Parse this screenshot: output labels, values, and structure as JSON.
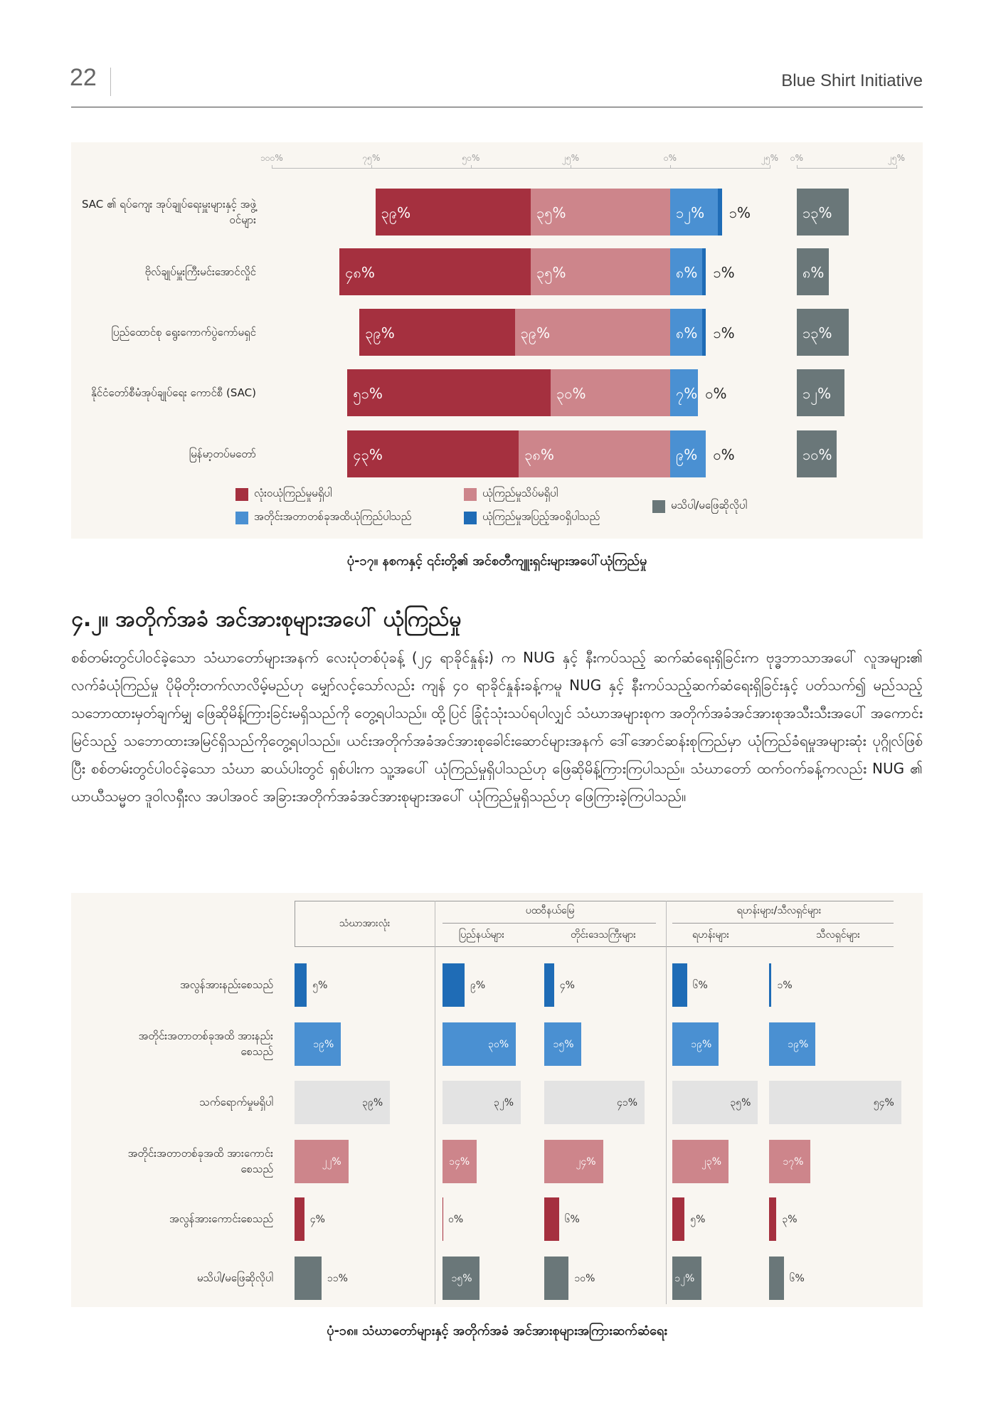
{
  "header": {
    "page_number": "22",
    "publisher": "Blue Shirt Initiative"
  },
  "chart_data": [
    {
      "type": "bar",
      "categories": [
        "SAC ၏ ရပ်ကျေး အုပ်ချုပ်ရေးမှူးများနှင့် အဖွဲ့ဝင်များ",
        "ဗိုလ်ချုပ်မှူးကြီးမင်းအောင်လှိုင်",
        "ပြည်ထောင်စု ရွေးကောက်ပွဲကော်မရှင်",
        "နိုင်ငံတော်စီမံအုပ်ချုပ်ရေး ကောင်စီ (SAC)",
        "မြန်မာ့တပ်မတော်"
      ],
      "xlim": [
        -100,
        25
      ],
      "xticks": [
        {
          "value": -100,
          "label": "၁၀၀%"
        },
        {
          "value": -75,
          "label": "၇၅%"
        },
        {
          "value": -50,
          "label": "၅၀%"
        },
        {
          "value": -25,
          "label": "၂၅%"
        },
        {
          "value": 0,
          "label": "၀%"
        },
        {
          "value": 25,
          "label": "၂၅%"
        }
      ],
      "x2lim": [
        0,
        25
      ],
      "x2ticks": [
        {
          "value": 0,
          "label": "၀%"
        },
        {
          "value": 25,
          "label": "၂၅%"
        }
      ],
      "series": [
        {
          "name": "လုံးဝယုံကြည်မှုမရှိပါ",
          "color": "#a5303f",
          "side": "left",
          "values": [
            39,
            48,
            39,
            51,
            43
          ],
          "value_labels": [
            "၃၉%",
            "၄၈%",
            "၃၉%",
            "၅၁%",
            "၄၃%"
          ]
        },
        {
          "name": "ယုံကြည်မှုသိပ်မရှိပါ",
          "color": "#cd858b",
          "side": "left",
          "values": [
            35,
            35,
            39,
            30,
            38
          ],
          "value_labels": [
            "၃၅%",
            "၃၅%",
            "၃၉%",
            "၃၀%",
            "၃၈%"
          ]
        },
        {
          "name": "အတိုင်းအတာတစ်ခုအထိယုံကြည်ပါသည်",
          "color": "#4a90d2",
          "side": "right",
          "values": [
            12,
            8,
            8,
            7,
            9
          ],
          "value_labels": [
            "၁၂%",
            "၈%",
            "၈%",
            "၇%",
            "၉%"
          ]
        },
        {
          "name": "ယုံကြည်မှုအပြည့်အဝရှိပါသည်",
          "color": "#1f6cb6",
          "side": "right",
          "values": [
            1,
            1,
            1,
            0,
            0
          ],
          "value_labels": [
            "၁%",
            "၁%",
            "၁%",
            "၀%",
            "၀%"
          ]
        },
        {
          "name": "မသိပါ/မဖြေဆိုလိုပါ",
          "color": "#6a7779",
          "axis": "x2",
          "values": [
            13,
            8,
            13,
            12,
            10
          ],
          "value_labels": [
            "၁၃%",
            "၈%",
            "၁၃%",
            "၁၂%",
            "၁၀%"
          ]
        }
      ],
      "caption": "ပုံ-၁၇။ နစကနှင့် ၎င်းတို့၏ အင်စတီကျူးရှင်းများအပေါ်ယုံကြည်မှု"
    },
    {
      "type": "bar",
      "categories": [
        "အလွန်အားနည်းစေသည်",
        "အတိုင်းအတာတစ်ခုအထိ အားနည်းစေသည်",
        "သက်ရောက်မှုမရှိပါ",
        "အတိုင်းအတာတစ်ခုအထိ အားကောင်းစေသည်",
        "အလွန်အားကောင်းစေသည်",
        "မသိပါ/မဖြေဆိုလိုပါ"
      ],
      "colors": [
        "#1f6cb6",
        "#4a90d2",
        "#e3e3e3",
        "#cd858b",
        "#a5303f",
        "#6a7779"
      ],
      "panels": [
        {
          "name": "သံဃာအားလုံး",
          "values": [
            5,
            19,
            39,
            22,
            4,
            11
          ],
          "value_labels": [
            "၅%",
            "၁၉%",
            "၃၉%",
            "၂၂%",
            "၄%",
            "၁၁%"
          ]
        },
        {
          "name": "ပထဝီနယ်မြေ",
          "columns": [
            {
              "name": "ပြည်နယ်များ",
              "values": [
                9,
                30,
                32,
                14,
                0,
                15
              ],
              "value_labels": [
                "၉%",
                "၃၀%",
                "၃၂%",
                "၁၄%",
                "၀%",
                "၁၅%"
              ]
            },
            {
              "name": "တိုင်းဒေသကြီးများ",
              "values": [
                4,
                15,
                41,
                24,
                6,
                10
              ],
              "value_labels": [
                "၄%",
                "၁၅%",
                "၄၁%",
                "၂၄%",
                "၆%",
                "၁၀%"
              ]
            }
          ]
        },
        {
          "name": "ရဟန်းများ/သီလရှင်များ",
          "columns": [
            {
              "name": "ရဟန်းများ",
              "values": [
                6,
                19,
                35,
                23,
                5,
                12
              ],
              "value_labels": [
                "၆%",
                "၁၉%",
                "၃၅%",
                "၂၃%",
                "၅%",
                "၁၂%"
              ]
            },
            {
              "name": "သီလရှင်များ",
              "values": [
                1,
                19,
                54,
                17,
                3,
                6
              ],
              "value_labels": [
                "၁%",
                "၁၉%",
                "၅၄%",
                "၁၇%",
                "၃%",
                "၆%"
              ]
            }
          ]
        }
      ],
      "caption": "ပုံ-၁၈။ သံဃာတော်များနှင့် အတိုက်အခံ အင်အားစုများအကြားဆက်ဆံရေး"
    }
  ],
  "section": {
    "heading": "၄.၂။ အတိုက်အခံ အင်အားစုများအပေါ် ယုံကြည်မှု",
    "paragraph": "စစ်တမ်းတွင်ပါဝင်ခဲ့သော သံဃာတော်များအနက် လေးပုံတစ်ပုံခန့် (၂၄ ရာခိုင်နှုန်း) က NUG နှင့် နီးကပ်သည့် ဆက်ဆံရေးရှိခြင်းက ဗုဒ္ဓဘာသာအပေါ် လူအများ၏ လက်ခံယုံကြည်မှု ပိုမိုတိုးတက်လာလိမ့်မည်ဟု မျှော်လင့်သော်လည်း ကျန် ၄၀ ရာခိုင်နှုန်းခန့်ကမူ NUG နှင့် နီးကပ်သည့်ဆက်ဆံရေးရှိခြင်းနှင့် ပတ်သက်၍ မည်သည့် သဘောထားမှတ်ချက်မျှ ဖြေဆိုမိန့်ကြားခြင်းမရှိသည်ကို တွေ့ရပါသည်။ ထို့ပြင် ခြုံငုံသုံးသပ်ရပါလျှင် သံဃာအများစုက အတိုက်အခံအင်အားစုအသီးသီးအပေါ် အကောင်းမြင်သည့် သဘောထားအမြင်ရှိသည်ကိုတွေ့ရပါသည်။ ယင်းအတိုက်အခံအင်အားစုခေါင်းဆောင်များအနက် ဒေါ်အောင်ဆန်းစုကြည်မှာ ယုံကြည်ခံရမှုအများဆုံး ပုဂ္ဂိုလ်ဖြစ်ပြီး စစ်တမ်းတွင်ပါဝင်ခဲ့သော သံဃာ ဆယ်ပါးတွင် ရှစ်ပါးက သူ့အပေါ် ယုံကြည်မှုရှိပါသည်ဟု ဖြေဆိုမိန့်ကြားကြပါသည်။ သံဃာတော် ထက်ဝက်ခန့်ကလည်း NUG ၏ ယာယီသမ္မတ ဒူဝါလရှီးလ အပါအဝင် အခြားအတိုက်အခံအင်အားစုများအပေါ် ယုံကြည်မှုရှိသည်ဟု ဖြေကြားခဲ့ကြပါသည်။"
  }
}
